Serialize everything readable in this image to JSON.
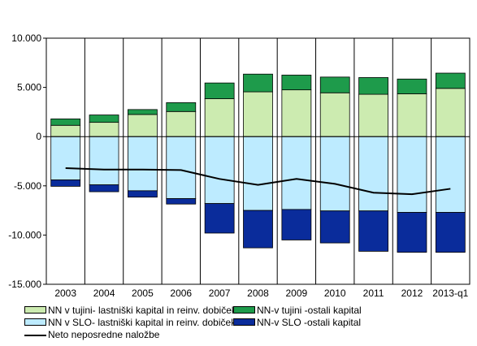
{
  "chart_data": {
    "type": "bar",
    "stacked": true,
    "title": "",
    "xlabel": "",
    "ylabel": "",
    "categories": [
      "2003",
      "2004",
      "2005",
      "2006",
      "2007",
      "2008",
      "2009",
      "2010",
      "2011",
      "2012",
      "2013-q1"
    ],
    "ylim": [
      -15000,
      10000
    ],
    "yticks": [
      10000,
      5000,
      0,
      -5000,
      -10000,
      -15000
    ],
    "ytick_labels": [
      "10.000",
      "5.000",
      "0",
      "-5.000",
      "-10.000",
      "-15.000"
    ],
    "grid": "vertical category separators",
    "legend_position": "bottom",
    "series": [
      {
        "name": "NN v tujini- lastniški kapital in reinv. dobiček",
        "type": "bar",
        "color": "#CCEBB0",
        "values": [
          1150,
          1450,
          2250,
          2550,
          3850,
          4550,
          4750,
          4450,
          4300,
          4350,
          4900
        ]
      },
      {
        "name": "NN-v tujini -ostali kapital",
        "type": "bar",
        "color": "#1E9B4B",
        "values": [
          650,
          750,
          500,
          900,
          1600,
          1800,
          1500,
          1600,
          1700,
          1500,
          1550
        ]
      },
      {
        "name": "NN v SLO- lastniški kapital in reinv. dobiček",
        "type": "bar",
        "color": "#BDEBFF",
        "values": [
          -4400,
          -4900,
          -5500,
          -6300,
          -6800,
          -7500,
          -7400,
          -7550,
          -7550,
          -7700,
          -7700
        ]
      },
      {
        "name": "NN-v SLO -ostali kapital",
        "type": "bar",
        "color": "#0A2C9B",
        "values": [
          -650,
          -700,
          -650,
          -550,
          -3000,
          -3800,
          -3100,
          -3250,
          -4100,
          -4050,
          -4050
        ]
      },
      {
        "name": "Neto neposredne naložbe",
        "type": "line",
        "color": "#000000",
        "values": [
          -3200,
          -3350,
          -3350,
          -3400,
          -4300,
          -4900,
          -4300,
          -4800,
          -5700,
          -5850,
          -5300
        ]
      }
    ]
  }
}
